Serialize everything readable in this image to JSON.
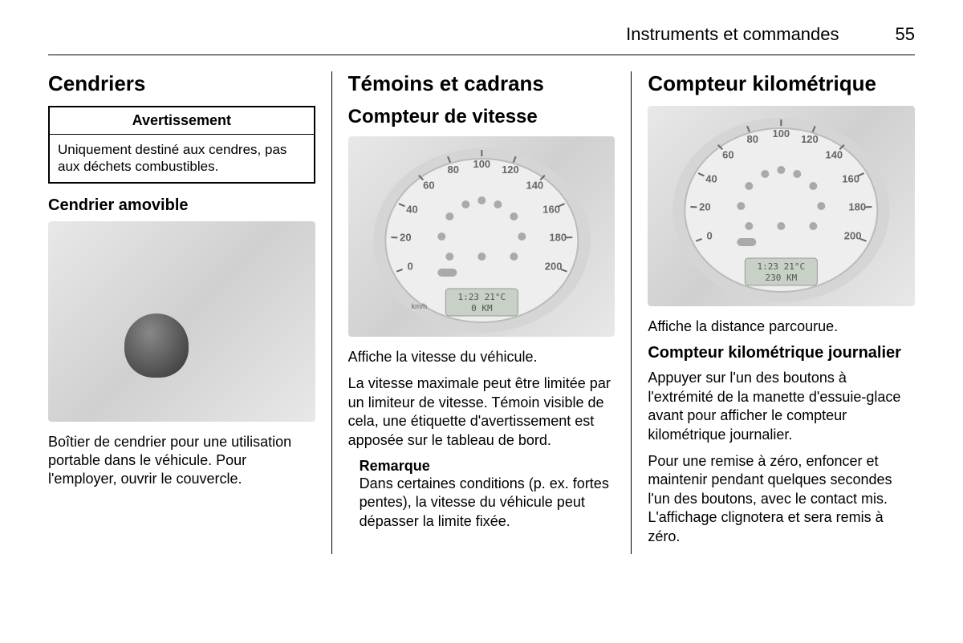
{
  "header": {
    "title": "Instruments et commandes",
    "page": "55"
  },
  "col1": {
    "h1": "Cendriers",
    "warning_title": "Avertissement",
    "warning_body": "Uniquement destiné aux cendres, pas aux déchets combustibles.",
    "h3": "Cendrier amovible",
    "p1": "Boîtier de cendrier pour une utilisation portable dans le véhicule. Pour l'employer, ouvrir le couvercle."
  },
  "col2": {
    "h1": "Témoins et cadrans",
    "h2": "Compteur de vitesse",
    "gauge": {
      "ticks": [
        "0",
        "20",
        "40",
        "60",
        "80",
        "100",
        "120",
        "140",
        "160",
        "180",
        "200"
      ],
      "unit": "km/h",
      "lcd_line1": "1:23    21°C",
      "lcd_line2": "0 KM",
      "face_color": "#eeeeee",
      "ring_color": "#d5d5d5",
      "text_color": "#666666"
    },
    "p1": "Affiche la vitesse du véhicule.",
    "p2": "La vitesse maximale peut être limitée par un limiteur de vitesse. Témoin visible de cela, une étiquette d'avertissement est apposée sur le tableau de bord.",
    "note_title": "Remarque",
    "note_body": "Dans certaines conditions (p. ex. fortes pentes), la vitesse du véhicule peut dépasser la limite fixée."
  },
  "col3": {
    "h1": "Compteur kilométrique",
    "gauge": {
      "ticks": [
        "0",
        "20",
        "40",
        "60",
        "80",
        "100",
        "120",
        "140",
        "160",
        "180",
        "200"
      ],
      "lcd_line1": "1:23    21°C",
      "lcd_line2": "230 KM",
      "face_color": "#eeeeee",
      "ring_color": "#d5d5d5",
      "text_color": "#666666"
    },
    "p1": "Affiche la distance parcourue.",
    "h3": "Compteur kilométrique journalier",
    "p2": "Appuyer sur l'un des boutons à l'extrémité de la manette d'essuie-glace avant pour afficher le compteur kilométrique journalier.",
    "p3": "Pour une remise à zéro, enfoncer et maintenir pendant quelques secondes l'un des boutons, avec le contact mis. L'affichage clignotera et sera remis à zéro."
  }
}
